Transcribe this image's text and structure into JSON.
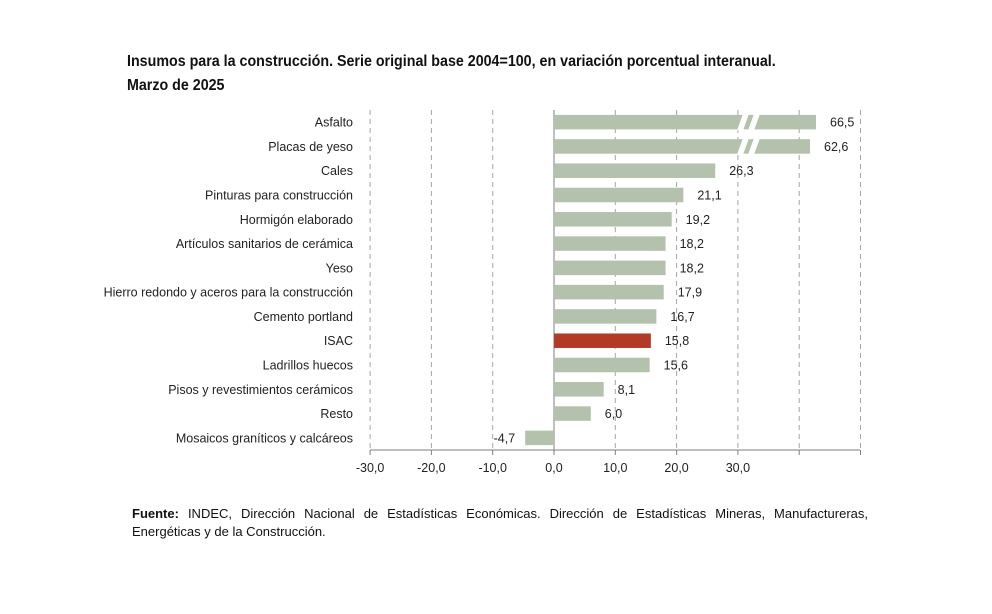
{
  "title": {
    "line1": "Insumos para la construcción. Serie original base 2004=100, en variación porcentual interanual.",
    "line2": "Marzo de 2025"
  },
  "source": {
    "label": "Fuente:",
    "text": "INDEC, Dirección Nacional de Estadísticas Económicas. Dirección de Estadísticas Mineras, Manufactureras, Energéticas y de la Construcción."
  },
  "colors": {
    "bar": "#b3c1ad",
    "highlight": "#b33a26",
    "grid": "#a6a6a6",
    "axis": "#7f7f7f"
  },
  "chart_data": {
    "type": "bar",
    "orientation": "horizontal",
    "categories": [
      "Asfalto",
      "Placas de yeso",
      "Cales",
      "Pinturas para construcción",
      "Hormigón elaborado",
      "Artículos sanitarios de cerámica",
      "Yeso",
      "Hierro redondo y aceros para la construcción",
      "Cemento portland",
      "ISAC",
      "Ladrillos huecos",
      "Pisos y revestimientos cerámicos",
      "Resto",
      "Mosaicos graníticos y calcáreos"
    ],
    "values": [
      66.5,
      62.6,
      26.3,
      21.1,
      19.2,
      18.2,
      18.2,
      17.9,
      16.7,
      15.8,
      15.6,
      8.1,
      6.0,
      -4.7
    ],
    "value_labels": [
      "66,5",
      "62,6",
      "26,3",
      "21,1",
      "19,2",
      "18,2",
      "18,2",
      "17,9",
      "16,7",
      "15,8",
      "15,6",
      "8,1",
      "6,0",
      "-4,7"
    ],
    "highlight": "ISAC",
    "broken_axis_bars": [
      "Asfalto",
      "Placas de yeso"
    ],
    "xlim": [
      -30,
      50
    ],
    "x_ticks": [
      -30,
      -20,
      -10,
      0,
      10,
      20,
      30
    ],
    "x_tick_labels": [
      "-30,0",
      "-20,0",
      "-10,0",
      "0,0",
      "10,0",
      "20,0",
      "30,0"
    ],
    "grid": "vertical dashed",
    "legend": "none"
  }
}
